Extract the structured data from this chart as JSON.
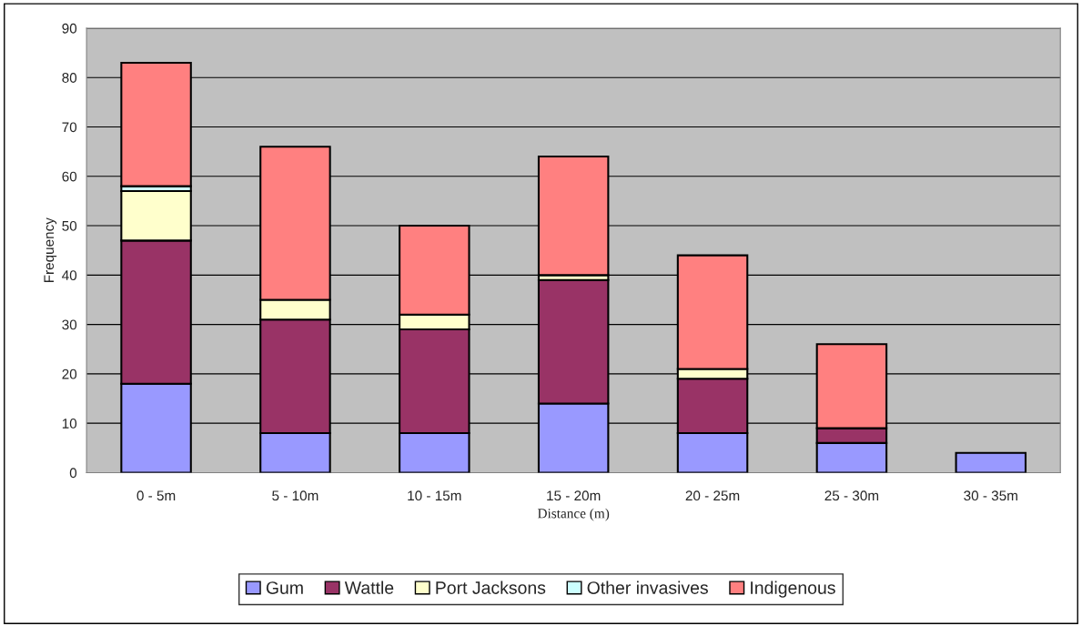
{
  "chart_data": {
    "type": "bar",
    "stacked": true,
    "xlabel": "Distance (m)",
    "ylabel": "Frequency",
    "categories": [
      "0 - 5m",
      "5 - 10m",
      "10 - 15m",
      "15 - 20m",
      "20 - 25m",
      "25 - 30m",
      "30 - 35m"
    ],
    "series": [
      {
        "name": "Gum",
        "color": "#9999ff",
        "values": [
          18,
          8,
          8,
          14,
          8,
          6,
          4
        ]
      },
      {
        "name": "Wattle",
        "color": "#993366",
        "values": [
          29,
          23,
          21,
          25,
          11,
          3,
          0
        ]
      },
      {
        "name": "Port Jacksons",
        "color": "#ffffcc",
        "values": [
          10,
          4,
          3,
          1,
          2,
          0,
          0
        ]
      },
      {
        "name": "Other invasives",
        "color": "#ccffff",
        "values": [
          1,
          0,
          0,
          0,
          0,
          0,
          0
        ]
      },
      {
        "name": "Indigenous",
        "color": "#ff8080",
        "values": [
          25,
          31,
          18,
          24,
          23,
          17,
          0
        ]
      }
    ],
    "ylim": [
      0,
      90
    ],
    "yticks": [
      0,
      10,
      20,
      30,
      40,
      50,
      60,
      70,
      80,
      90
    ],
    "grid": "y",
    "legend": "bottom"
  }
}
